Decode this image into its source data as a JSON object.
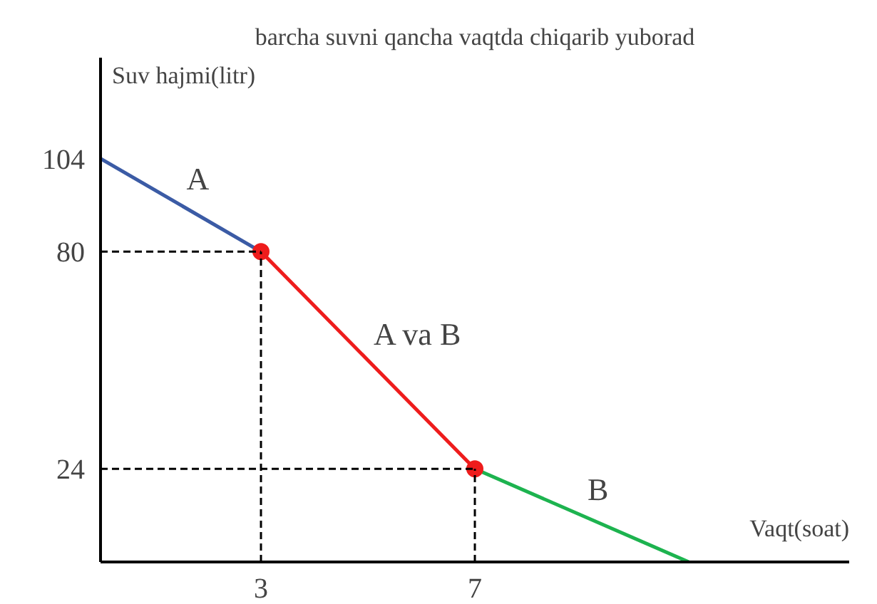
{
  "chart_data": {
    "type": "line",
    "title": "barcha suvni qancha vaqtda chiqarib yuborad",
    "xlabel": "Vaqt(soat)",
    "ylabel": "Suv hajmi(litr)",
    "xlim": [
      0,
      14
    ],
    "ylim": [
      0,
      130
    ],
    "xticks": [
      3,
      7
    ],
    "yticks": [
      24,
      80,
      104
    ],
    "grid": false,
    "series": [
      {
        "name": "A",
        "color": "#3b5ba5",
        "x": [
          0,
          3
        ],
        "values": [
          104,
          80
        ]
      },
      {
        "name": "A va B",
        "color": "#ee1c1c",
        "x": [
          3,
          7
        ],
        "values": [
          80,
          24
        ]
      },
      {
        "name": "B",
        "color": "#1db34f",
        "x": [
          7,
          11
        ],
        "values": [
          24,
          0
        ]
      },
      {
        "type": "scatter",
        "color": "#ee1c1c",
        "marker": "circle",
        "x": [
          3,
          7
        ],
        "values": [
          80,
          24
        ]
      },
      {
        "color": "#000000",
        "line_style": "dashed",
        "x": [
          0,
          3
        ],
        "values": [
          80,
          80
        ]
      },
      {
        "color": "#000000",
        "line_style": "dashed",
        "x": [
          3,
          3
        ],
        "values": [
          0,
          80
        ]
      },
      {
        "color": "#000000",
        "line_style": "dashed",
        "x": [
          0,
          7
        ],
        "values": [
          24,
          24
        ]
      },
      {
        "color": "#000000",
        "line_style": "dashed",
        "x": [
          7,
          7
        ],
        "values": [
          0,
          24
        ]
      }
    ]
  }
}
